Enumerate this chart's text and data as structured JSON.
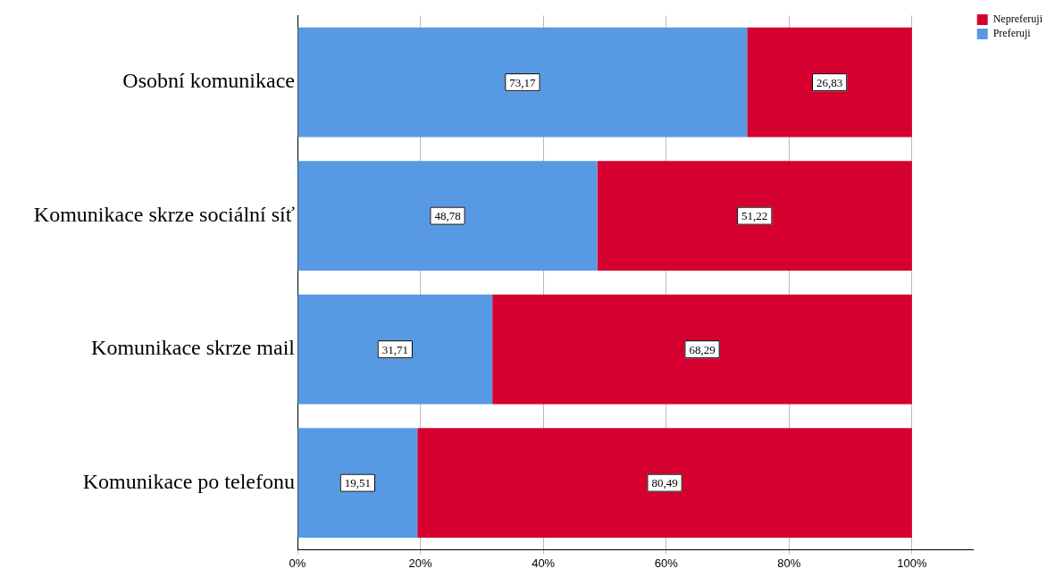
{
  "chart_data": {
    "type": "bar",
    "orientation": "horizontal",
    "stacked": true,
    "categories": [
      "Osobní komunikace",
      "Komunikace skrze sociální síť",
      "Komunikace skrze mail",
      "Komunikace po telefonu"
    ],
    "series": [
      {
        "name": "Preferuji",
        "color": "#5899e3",
        "values": [
          73.17,
          48.78,
          31.71,
          19.51
        ],
        "value_labels": [
          "73,17",
          "48,78",
          "31,71",
          "19,51"
        ]
      },
      {
        "name": "Nepreferuji",
        "color": "#d5002f",
        "values": [
          26.83,
          51.22,
          68.29,
          80.49
        ],
        "value_labels": [
          "26,83",
          "51,22",
          "68,29",
          "80,49"
        ]
      }
    ],
    "xlim": [
      0,
      110
    ],
    "xticks": [
      {
        "value": 0,
        "label": "0%"
      },
      {
        "value": 20,
        "label": "20%"
      },
      {
        "value": 40,
        "label": "40%"
      },
      {
        "value": 60,
        "label": "60%"
      },
      {
        "value": 80,
        "label": "80%"
      },
      {
        "value": 100,
        "label": "100%"
      }
    ],
    "grid": "x",
    "legend": "top right"
  }
}
